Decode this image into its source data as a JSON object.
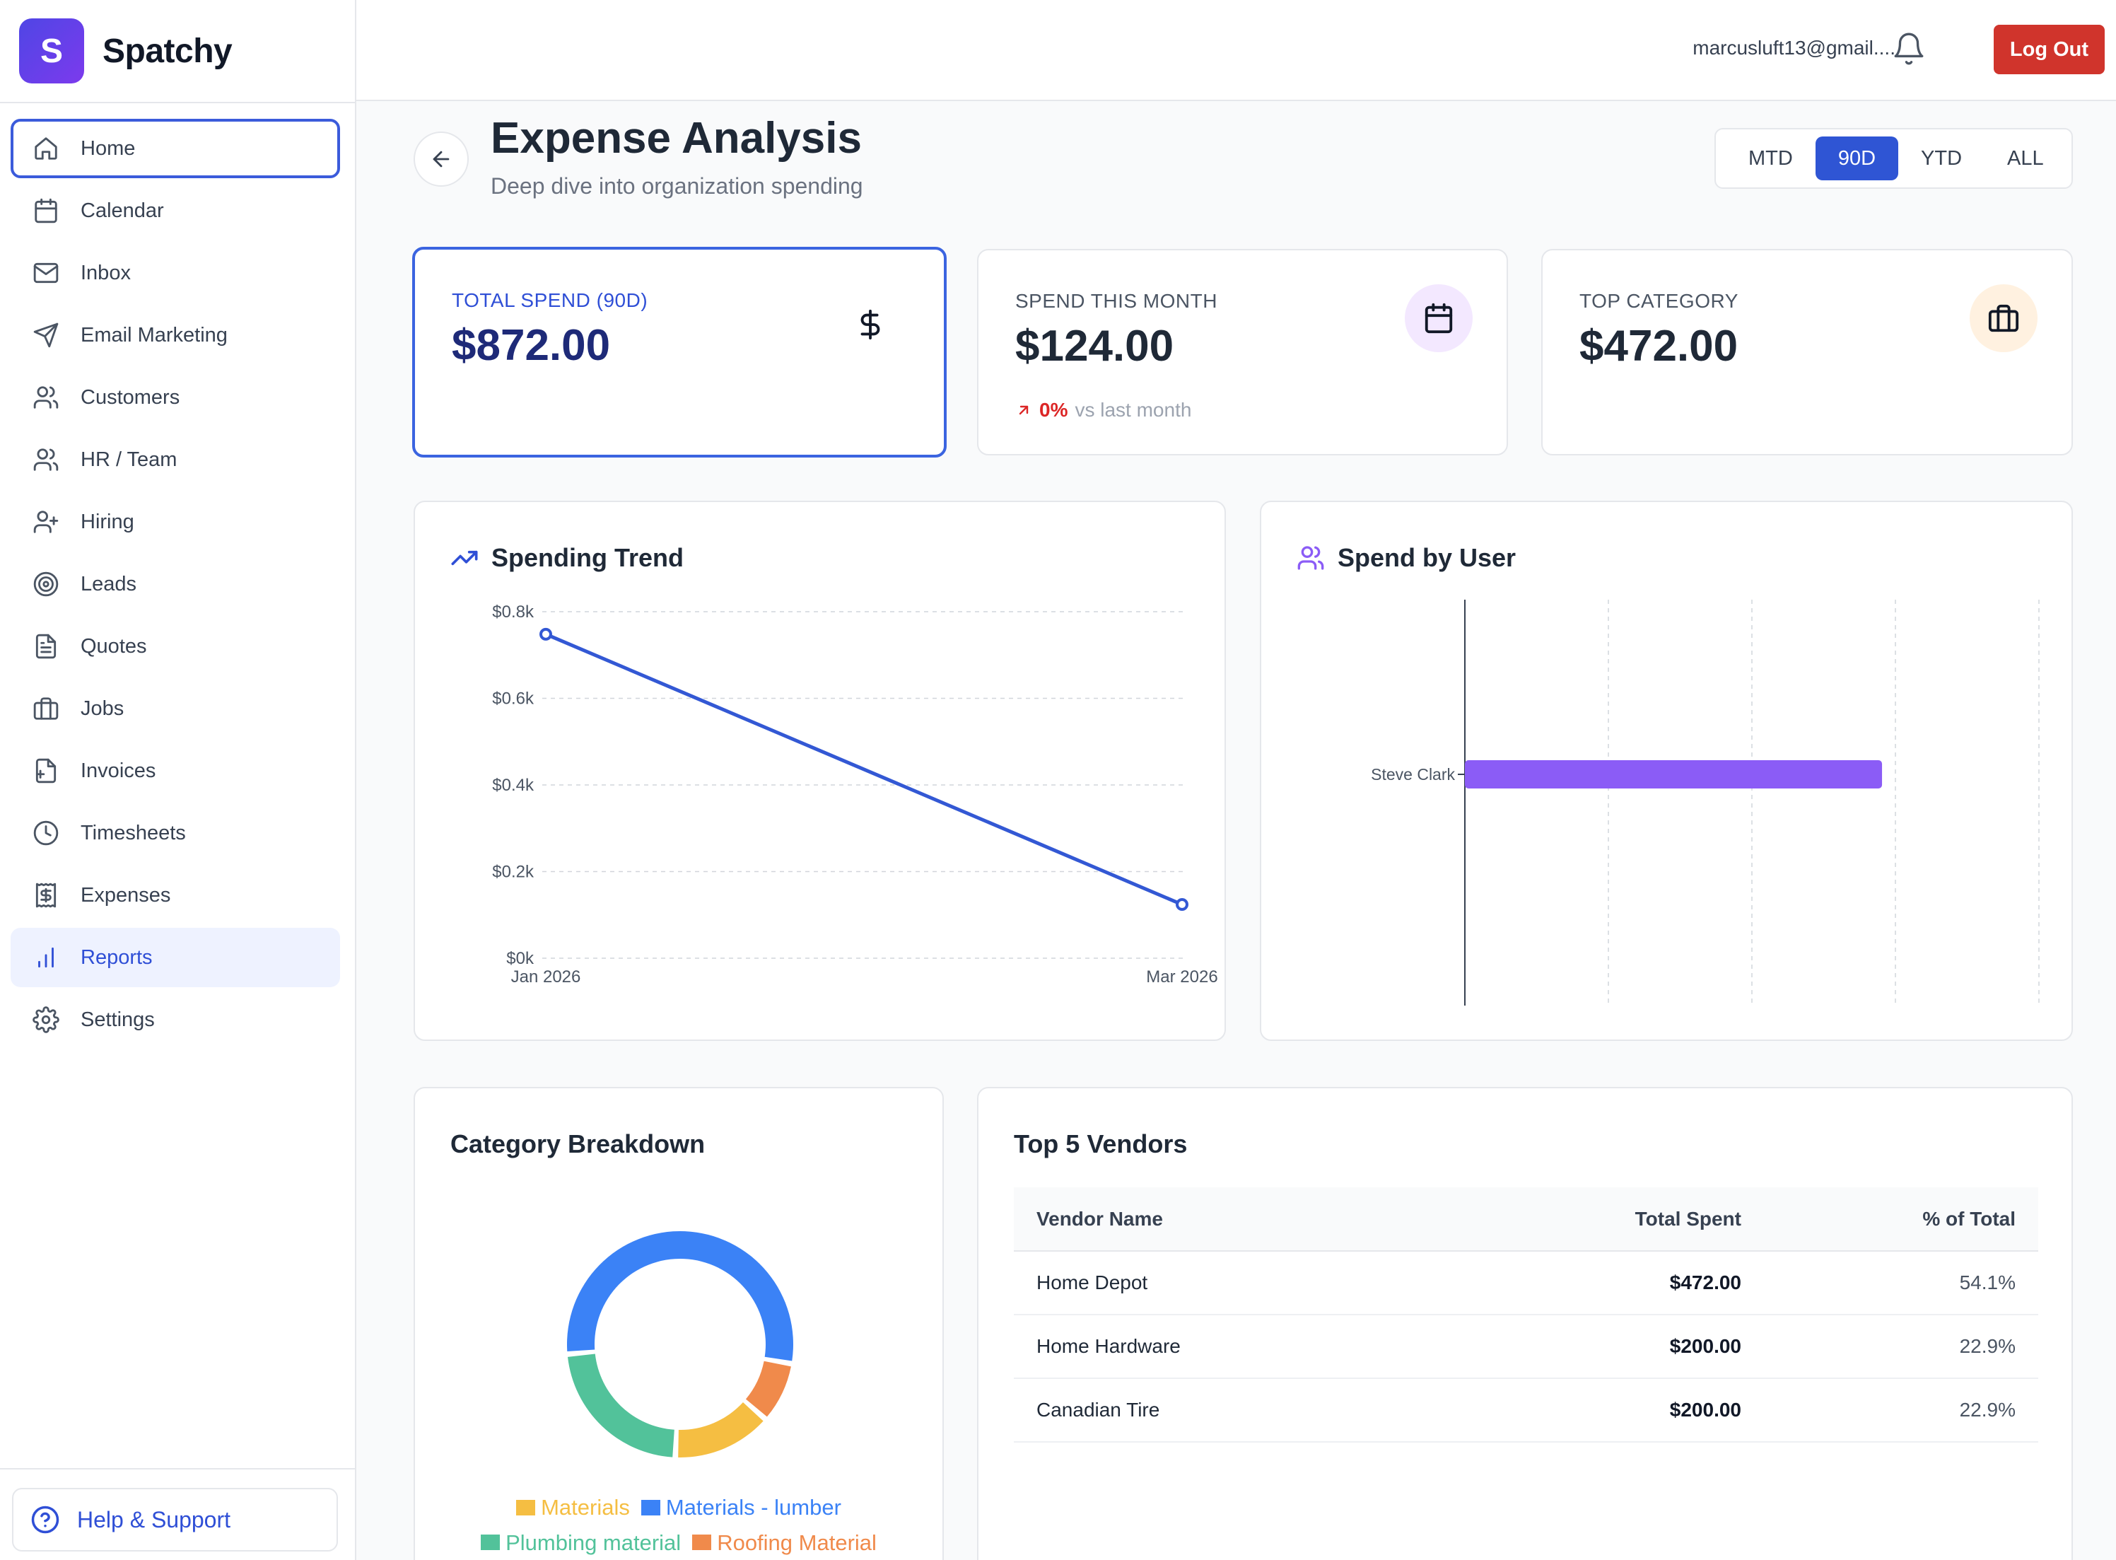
{
  "app": {
    "logo_letter": "S",
    "name": "Spatchy"
  },
  "sidebar": {
    "items": [
      {
        "label": "Home",
        "icon": "home-icon",
        "name": "sidebar-item-home"
      },
      {
        "label": "Calendar",
        "icon": "calendar-icon",
        "name": "sidebar-item-calendar"
      },
      {
        "label": "Inbox",
        "icon": "mail-icon",
        "name": "sidebar-item-inbox"
      },
      {
        "label": "Email Marketing",
        "icon": "send-icon",
        "name": "sidebar-item-email-marketing"
      },
      {
        "label": "Customers",
        "icon": "users-icon",
        "name": "sidebar-item-customers"
      },
      {
        "label": "HR / Team",
        "icon": "users-icon",
        "name": "sidebar-item-hr-team"
      },
      {
        "label": "Hiring",
        "icon": "user-plus-icon",
        "name": "sidebar-item-hiring"
      },
      {
        "label": "Leads",
        "icon": "target-icon",
        "name": "sidebar-item-leads"
      },
      {
        "label": "Quotes",
        "icon": "file-text-icon",
        "name": "sidebar-item-quotes"
      },
      {
        "label": "Jobs",
        "icon": "briefcase-icon",
        "name": "sidebar-item-jobs"
      },
      {
        "label": "Invoices",
        "icon": "file-plus-icon",
        "name": "sidebar-item-invoices"
      },
      {
        "label": "Timesheets",
        "icon": "clock-icon",
        "name": "sidebar-item-timesheets"
      },
      {
        "label": "Expenses",
        "icon": "receipt-dollar-icon",
        "name": "sidebar-item-expenses"
      },
      {
        "label": "Reports",
        "icon": "bar-chart-icon",
        "name": "sidebar-item-reports"
      },
      {
        "label": "Settings",
        "icon": "gear-icon",
        "name": "sidebar-item-settings"
      }
    ],
    "focused": "Home",
    "active": "Reports",
    "help_label": "Help & Support"
  },
  "topbar": {
    "user_email": "marcusluft13@gmail....",
    "logout_label": "Log Out"
  },
  "page": {
    "title": "Expense Analysis",
    "subtitle": "Deep dive into organization spending",
    "ranges": [
      "MTD",
      "90D",
      "YTD",
      "ALL"
    ],
    "active_range": "90D"
  },
  "stats": [
    {
      "label": "TOTAL SPEND (90D)",
      "value": "$872.00",
      "icon": "dollar-icon",
      "icon_bg": "",
      "icon_color": "#111827"
    },
    {
      "label": "SPEND THIS MONTH",
      "value": "$124.00",
      "icon": "calendar-icon",
      "icon_bg": "#f3e8ff",
      "icon_color": "#111827",
      "trend_pct": "0%",
      "trend_text": "vs last month"
    },
    {
      "label": "TOP CATEGORY",
      "value": "$472.00",
      "icon": "briefcase-icon",
      "icon_bg": "#fff1e0",
      "icon_color": "#111827"
    }
  ],
  "charts": {
    "trend_title": "Spending Trend",
    "user_title": "Spend by User",
    "category_title": "Category Breakdown",
    "vendors_title": "Top 5 Vendors"
  },
  "chart_data": [
    {
      "type": "line",
      "x": [
        "Jan 2026",
        "Mar 2026"
      ],
      "values": [
        748,
        124
      ],
      "y_ticks": [
        "$0k",
        "$0.2k",
        "$0.4k",
        "$0.6k",
        "$0.8k"
      ],
      "ylim": [
        0,
        800
      ],
      "grid": true,
      "color": "#3358d4"
    },
    {
      "type": "bar",
      "orientation": "horizontal",
      "categories": [
        "Steve Clark"
      ],
      "values": [
        872
      ],
      "xlim": [
        0,
        1200
      ],
      "grid": true,
      "color": "#8b5cf6"
    },
    {
      "type": "pie",
      "donut": true,
      "categories": [
        "Materials",
        "Materials - lumber",
        "Plumbing material",
        "Roofing Material"
      ],
      "values": [
        124,
        472,
        200,
        76
      ],
      "colors": [
        "#f5be42",
        "#3b82f6",
        "#52c29a",
        "#f08a4b"
      ]
    }
  ],
  "vendors": {
    "headers": [
      "Vendor Name",
      "Total Spent",
      "% of Total"
    ],
    "rows": [
      [
        "Home Depot",
        "$472.00",
        "54.1%"
      ],
      [
        "Home Hardware",
        "$200.00",
        "22.9%"
      ],
      [
        "Canadian Tire",
        "$200.00",
        "22.9%"
      ]
    ]
  }
}
